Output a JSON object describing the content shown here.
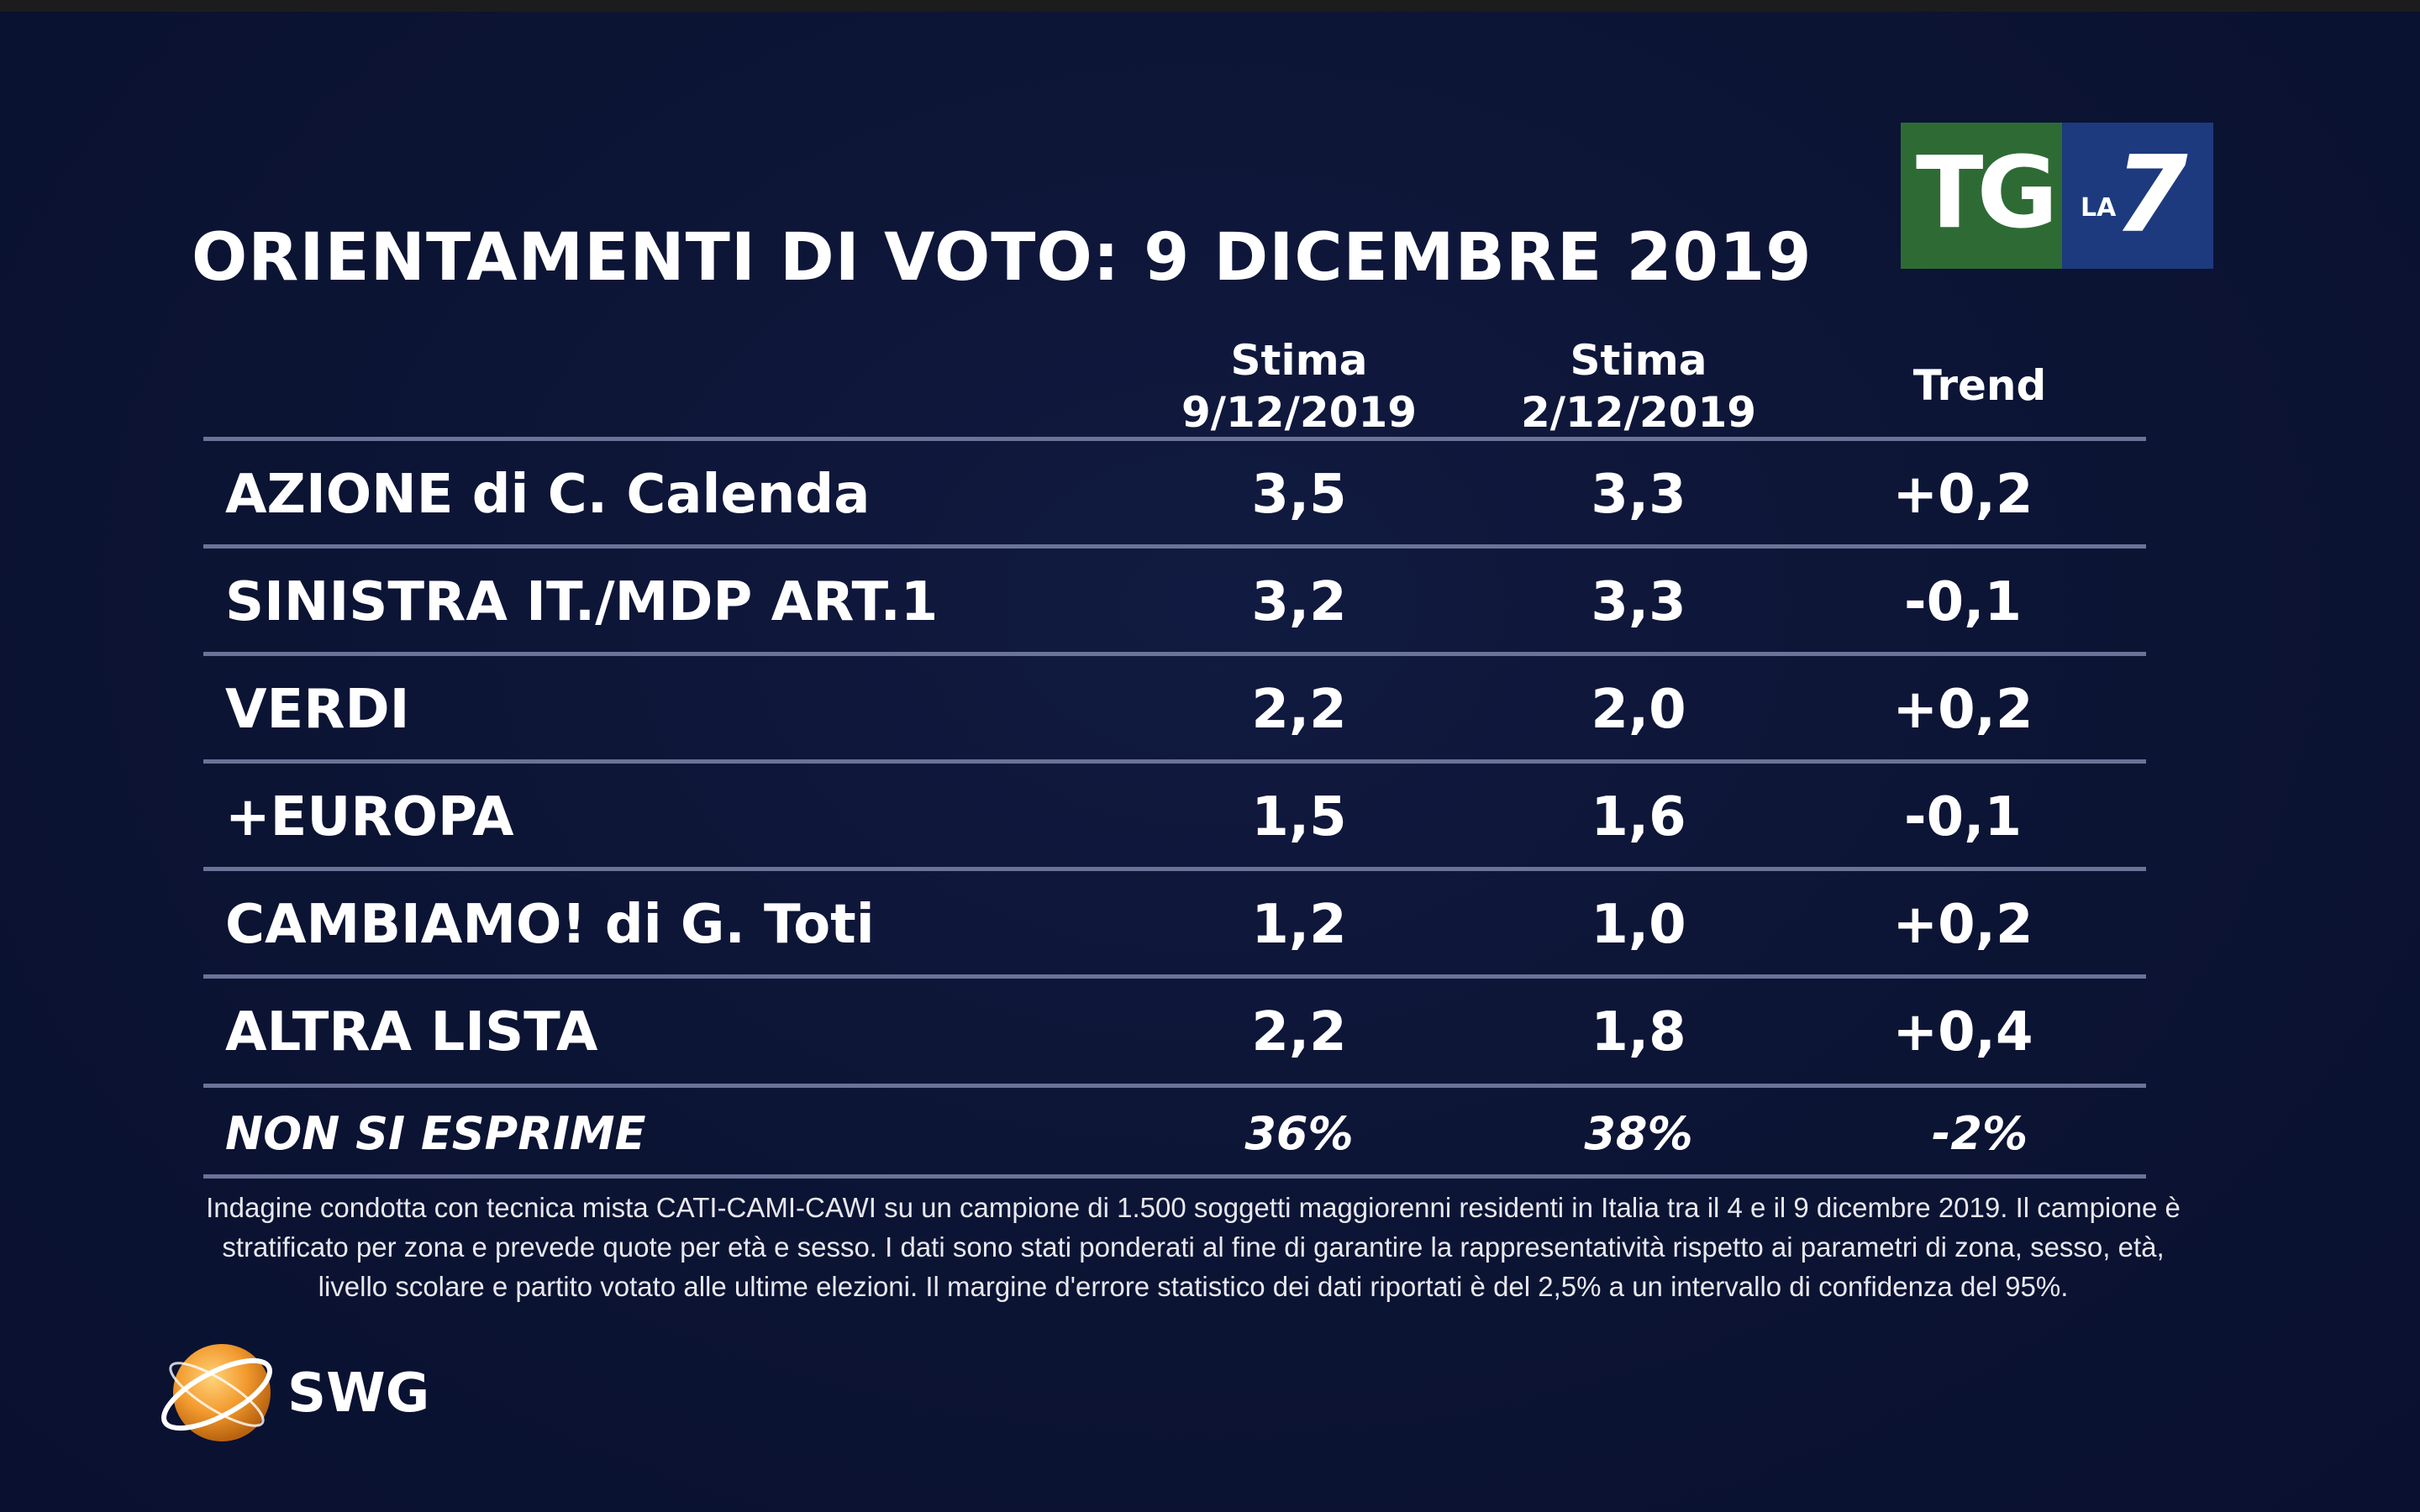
{
  "title": "ORIENTAMENTI DI VOTO: 9 DICEMBRE 2019",
  "broadcaster_logo": {
    "tg": "TG",
    "la": "LA",
    "seven": "7",
    "colors": {
      "green": "#2e6b34",
      "blue": "#1d3a7e"
    }
  },
  "chart_data": {
    "type": "table",
    "title": "ORIENTAMENTI DI VOTO: 9 DICEMBRE 2019",
    "columns": [
      {
        "line1": "Stima",
        "line2": "9/12/2019"
      },
      {
        "line1": "Stima",
        "line2": "2/12/2019"
      },
      {
        "line1": "Trend",
        "line2": ""
      }
    ],
    "rows": [
      {
        "label": "AZIONE di C. Calenda",
        "values": [
          "3,5",
          "3,3",
          "+0,2"
        ]
      },
      {
        "label": "SINISTRA IT./MDP ART.1",
        "values": [
          "3,2",
          "3,3",
          "-0,1"
        ]
      },
      {
        "label": "VERDI",
        "values": [
          "2,2",
          "2,0",
          "+0,2"
        ]
      },
      {
        "label": "+EUROPA",
        "values": [
          "1,5",
          "1,6",
          "-0,1"
        ]
      },
      {
        "label": "CAMBIAMO! di G. Toti",
        "values": [
          "1,2",
          "1,0",
          "+0,2"
        ]
      },
      {
        "label": "ALTRA LISTA",
        "values": [
          "2,2",
          "1,8",
          "+0,4"
        ]
      },
      {
        "label": "NON SI ESPRIME",
        "values": [
          "36%",
          "38%",
          "-2%"
        ]
      }
    ]
  },
  "footnote": [
    "Indagine condotta con tecnica mista CATI-CAMI-CAWI su un campione di 1.500 soggetti maggiorenni residenti in Italia tra il 4 e il 9 dicembre 2019. Il campione è",
    "stratificato per zona e prevede quote per età e sesso. I dati sono stati ponderati al fine di garantire la rappresentatività rispetto ai parametri di zona, sesso, età,",
    "livello scolare e partito votato alle ultime elezioni. Il margine d'errore statistico dei dati riportati è del 2,5% a un intervallo di confidenza del 95%."
  ],
  "source_logo": {
    "text": "SWG",
    "icon": "orange-globe-icon",
    "color": "#f29a2e"
  }
}
